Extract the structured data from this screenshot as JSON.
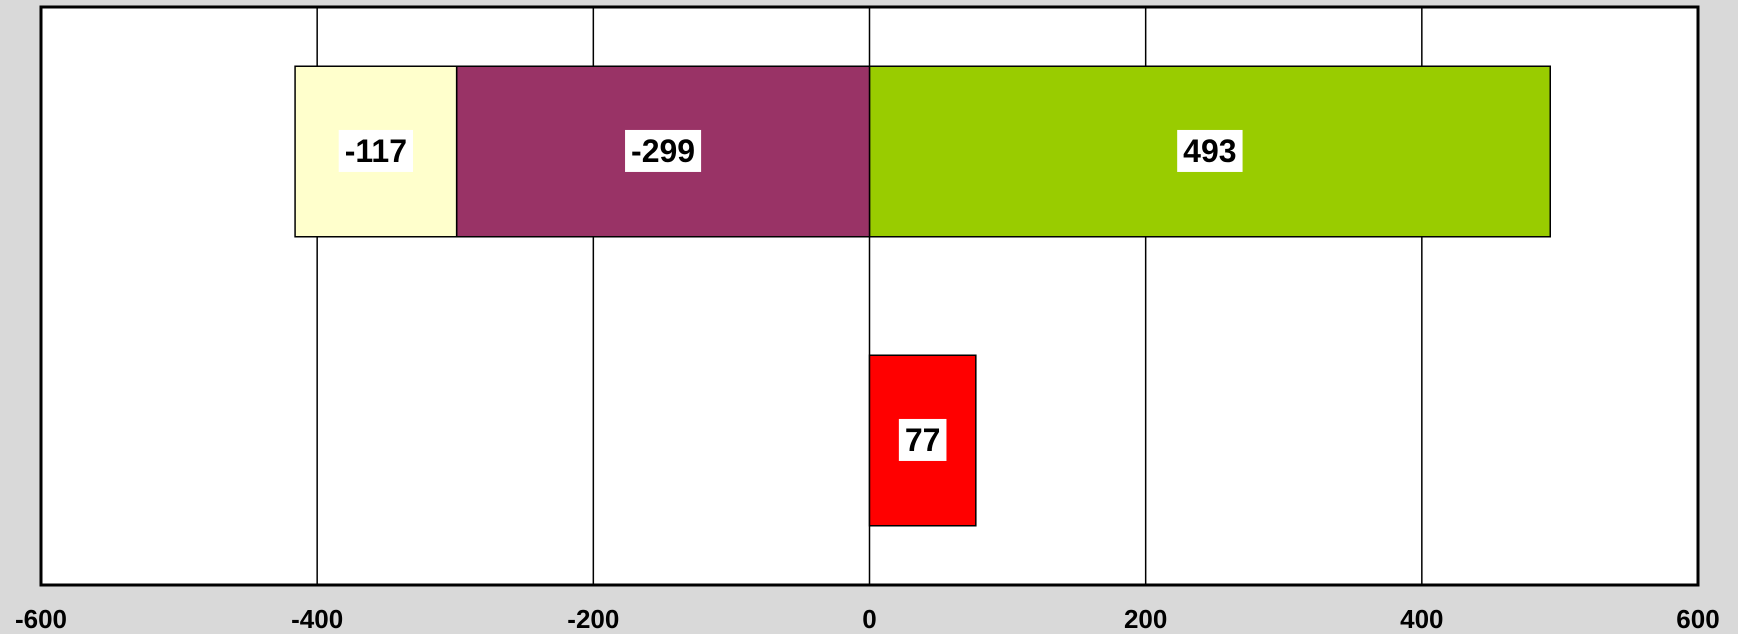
{
  "chart_data": {
    "type": "stacked_barh",
    "categories": [
      null,
      null
    ],
    "series": [
      {
        "color": "#99cc00",
        "values": [
          493,
          null
        ]
      },
      {
        "color": "#993366",
        "values": [
          -299,
          null
        ]
      },
      {
        "color": "#ffffcc",
        "values": [
          -117,
          null
        ]
      },
      {
        "color": "#ff0000",
        "values": [
          null,
          77
        ]
      }
    ],
    "xlim": [
      -600,
      600
    ],
    "xticks": [
      -600,
      -400,
      -200,
      0,
      200,
      400,
      600
    ],
    "grid": true
  }
}
